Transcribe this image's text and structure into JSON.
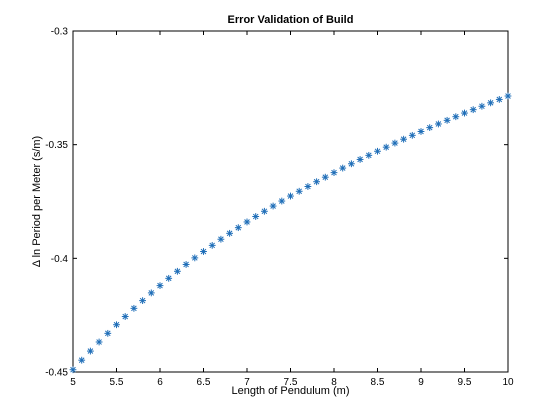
{
  "colors": {
    "background": "#ffffff",
    "axes": "#000000",
    "series": "#1f6eb8"
  },
  "chart_data": {
    "type": "scatter",
    "title": "Error Validation of Build",
    "xlabel": "Length of Pendulum (m)",
    "ylabel": "Δ ln Period per Meter (s/m)",
    "xlim": [
      5,
      10
    ],
    "ylim": [
      -0.45,
      -0.3
    ],
    "xticks": [
      5,
      5.5,
      6,
      6.5,
      7,
      7.5,
      8,
      8.5,
      9,
      9.5,
      10
    ],
    "xtick_labels": [
      "5",
      "5.5",
      "6",
      "6.5",
      "7",
      "7.5",
      "8",
      "8.5",
      "9",
      "9.5",
      "10"
    ],
    "yticks": [
      -0.45,
      -0.4,
      -0.35,
      -0.3
    ],
    "ytick_labels": [
      "-0.45",
      "-0.4",
      "-0.35",
      "-0.3"
    ],
    "grid": false,
    "marker": "asterisk",
    "series": [
      {
        "x": [
          5.0,
          5.1,
          5.2,
          5.3,
          5.4,
          5.5,
          5.6,
          5.7,
          5.8,
          5.9,
          6.0,
          6.1,
          6.2,
          6.3,
          6.4,
          6.5,
          6.6,
          6.7,
          6.8,
          6.9,
          7.0,
          7.1,
          7.2,
          7.3,
          7.4,
          7.5,
          7.6,
          7.7,
          7.8,
          7.9,
          8.0,
          8.1,
          8.2,
          8.3,
          8.4,
          8.5,
          8.6,
          8.7,
          8.8,
          8.9,
          9.0,
          9.1,
          9.2,
          9.3,
          9.4,
          9.5,
          9.6,
          9.7,
          9.8,
          9.9,
          10.0
        ],
        "y": [
          -0.449,
          -0.4448,
          -0.4408,
          -0.4368,
          -0.433,
          -0.4292,
          -0.4256,
          -0.422,
          -0.4186,
          -0.4152,
          -0.412,
          -0.4088,
          -0.4057,
          -0.4027,
          -0.3998,
          -0.397,
          -0.3943,
          -0.3916,
          -0.389,
          -0.3865,
          -0.384,
          -0.3816,
          -0.3793,
          -0.377,
          -0.3748,
          -0.3726,
          -0.3705,
          -0.3684,
          -0.3663,
          -0.3643,
          -0.3623,
          -0.3603,
          -0.3584,
          -0.3565,
          -0.3547,
          -0.3529,
          -0.3511,
          -0.3493,
          -0.3476,
          -0.3459,
          -0.3442,
          -0.3425,
          -0.3409,
          -0.3393,
          -0.3377,
          -0.3361,
          -0.3346,
          -0.3331,
          -0.3316,
          -0.3301,
          -0.3286
        ]
      }
    ]
  }
}
